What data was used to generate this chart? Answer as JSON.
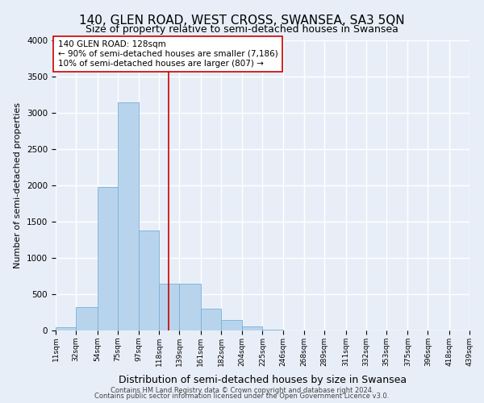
{
  "title": "140, GLEN ROAD, WEST CROSS, SWANSEA, SA3 5QN",
  "subtitle": "Size of property relative to semi-detached houses in Swansea",
  "xlabel": "Distribution of semi-detached houses by size in Swansea",
  "ylabel": "Number of semi-detached properties",
  "bar_color": "#b8d4ed",
  "bar_edge_color": "#7aafd4",
  "property_line_x": 128,
  "property_line_color": "#cc0000",
  "annotation_title": "140 GLEN ROAD: 128sqm",
  "annotation_line1": "← 90% of semi-detached houses are smaller (7,186)",
  "annotation_line2": "10% of semi-detached houses are larger (807) →",
  "annotation_box_color": "#ffffff",
  "annotation_box_edge": "#cc0000",
  "footer1": "Contains HM Land Registry data © Crown copyright and database right 2024.",
  "footer2": "Contains public sector information licensed under the Open Government Licence v3.0.",
  "bins": [
    11,
    32,
    54,
    75,
    97,
    118,
    139,
    161,
    182,
    204,
    225,
    246,
    268,
    289,
    311,
    332,
    353,
    375,
    396,
    418,
    439
  ],
  "counts": [
    40,
    320,
    1975,
    3150,
    1380,
    650,
    650,
    300,
    140,
    60,
    15,
    5,
    0,
    0,
    0,
    0,
    0,
    0,
    0,
    0
  ],
  "ylim": [
    0,
    4000
  ],
  "yticks": [
    0,
    500,
    1000,
    1500,
    2000,
    2500,
    3000,
    3500,
    4000
  ],
  "background_color": "#e8eef8",
  "grid_color": "#ffffff",
  "title_fontsize": 11,
  "subtitle_fontsize": 9
}
